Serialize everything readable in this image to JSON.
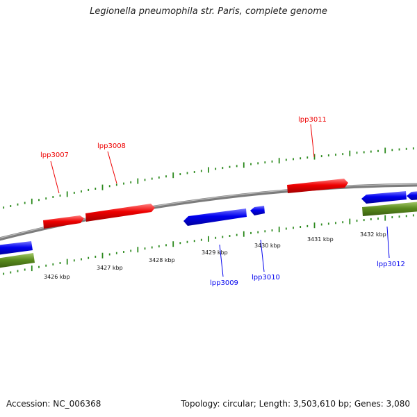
{
  "title": "Legionella pneumophila str. Paris, complete genome",
  "footer": {
    "accession": "Accession: NC_006368",
    "summary": "Topology: circular; Length: 3,503,610 bp; Genes: 3,080"
  },
  "colors": {
    "forward_gene": "#ee0000",
    "reverse_gene": "#0000ee",
    "lower_track": "#5a8c1e",
    "tick": "#2c8a1e",
    "backbone": "#888888"
  },
  "scale_labels": [
    "3426 kbp",
    "3427 kbp",
    "3428 kbp",
    "3429 kbp",
    "3430 kbp",
    "3431 kbp",
    "3432 kbp"
  ],
  "gene_labels": [
    {
      "text": "lpp3007",
      "strand": "forward"
    },
    {
      "text": "lpp3008",
      "strand": "forward"
    },
    {
      "text": "lpp3011",
      "strand": "forward"
    },
    {
      "text": "lpp3009",
      "strand": "reverse"
    },
    {
      "text": "lpp3010",
      "strand": "reverse"
    },
    {
      "text": "lpp3012",
      "strand": "reverse"
    }
  ]
}
